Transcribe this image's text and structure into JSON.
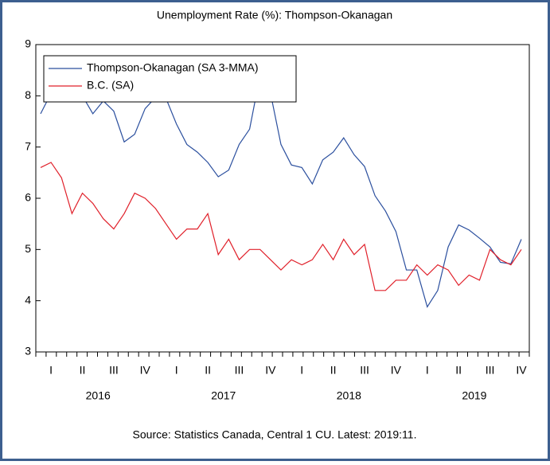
{
  "chart_data": {
    "type": "line",
    "title": "Unemployment Rate (%): Thompson-Okanagan",
    "source": "Source: Statistics Canada, Central 1 CU. Latest: 2019:11.",
    "quarters": [
      "I",
      "II",
      "III",
      "IV",
      "I",
      "II",
      "III",
      "IV",
      "I",
      "II",
      "III",
      "IV",
      "I",
      "II",
      "III",
      "IV"
    ],
    "years": [
      "2016",
      "2017",
      "2018",
      "2019"
    ],
    "series": [
      {
        "name": "Thompson-Okanagan (SA 3-MMA)",
        "color": "#2b4f9e",
        "values": [
          7.65,
          8.05,
          8.3,
          8.2,
          8.0,
          7.65,
          7.9,
          7.7,
          7.1,
          7.25,
          7.75,
          7.97,
          7.95,
          7.45,
          7.05,
          6.9,
          6.7,
          6.42,
          6.55,
          7.05,
          7.35,
          8.4,
          8.05,
          7.05,
          6.65,
          6.6,
          6.28,
          6.75,
          6.9,
          7.18,
          6.85,
          6.62,
          6.05,
          5.75,
          5.35,
          4.6,
          4.6,
          3.88,
          4.2,
          5.05,
          5.48,
          5.38,
          5.22,
          5.05,
          4.75,
          4.72,
          5.2
        ]
      },
      {
        "name": "B.C. (SA)",
        "color": "#e0202a",
        "values": [
          6.6,
          6.7,
          6.4,
          5.7,
          6.1,
          5.9,
          5.6,
          5.4,
          5.7,
          6.1,
          6.0,
          5.8,
          5.5,
          5.2,
          5.4,
          5.4,
          5.7,
          4.9,
          5.2,
          4.8,
          5.0,
          5.0,
          4.8,
          4.6,
          4.8,
          4.7,
          4.8,
          5.1,
          4.8,
          5.2,
          4.9,
          5.1,
          4.2,
          4.2,
          4.4,
          4.4,
          4.7,
          4.5,
          4.7,
          4.6,
          4.3,
          4.5,
          4.4,
          5.0,
          4.8,
          4.7,
          5.0
        ]
      }
    ],
    "ylim": [
      3,
      9
    ],
    "yticks": [
      3,
      4,
      5,
      6,
      7,
      8,
      9
    ],
    "legend": "upper left"
  }
}
